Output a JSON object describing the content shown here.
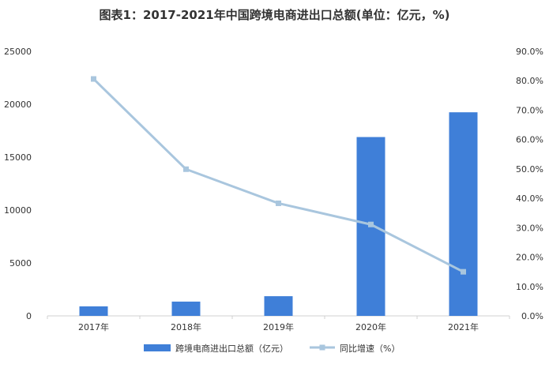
{
  "chart_data": {
    "type": "bar",
    "title": "图表1：2017-2021年中国跨境电商进出口总额(单位：亿元，%)",
    "categories": [
      "2017年",
      "2018年",
      "2019年",
      "2020年",
      "2021年"
    ],
    "series": [
      {
        "name": "跨境电商进出口总额（亿元）",
        "type": "bar",
        "axis": "left",
        "color": "#3f7fd8",
        "values": [
          900,
          1350,
          1860,
          16900,
          19240
        ]
      },
      {
        "name": "同比增速（%）",
        "type": "line",
        "axis": "right",
        "color": "#a9c6de",
        "values": [
          80.6,
          49.9,
          38.3,
          31.1,
          15.0
        ]
      }
    ],
    "yleft": {
      "min": 0,
      "max": 25000,
      "ticks": [
        "0",
        "5000",
        "10000",
        "15000",
        "20000",
        "25000"
      ]
    },
    "yright": {
      "min": 0,
      "max": 90,
      "ticks": [
        "0.0%",
        "10.0%",
        "20.0%",
        "30.0%",
        "40.0%",
        "50.0%",
        "60.0%",
        "70.0%",
        "80.0%",
        "90.0%"
      ]
    },
    "legend_position": "bottom"
  }
}
